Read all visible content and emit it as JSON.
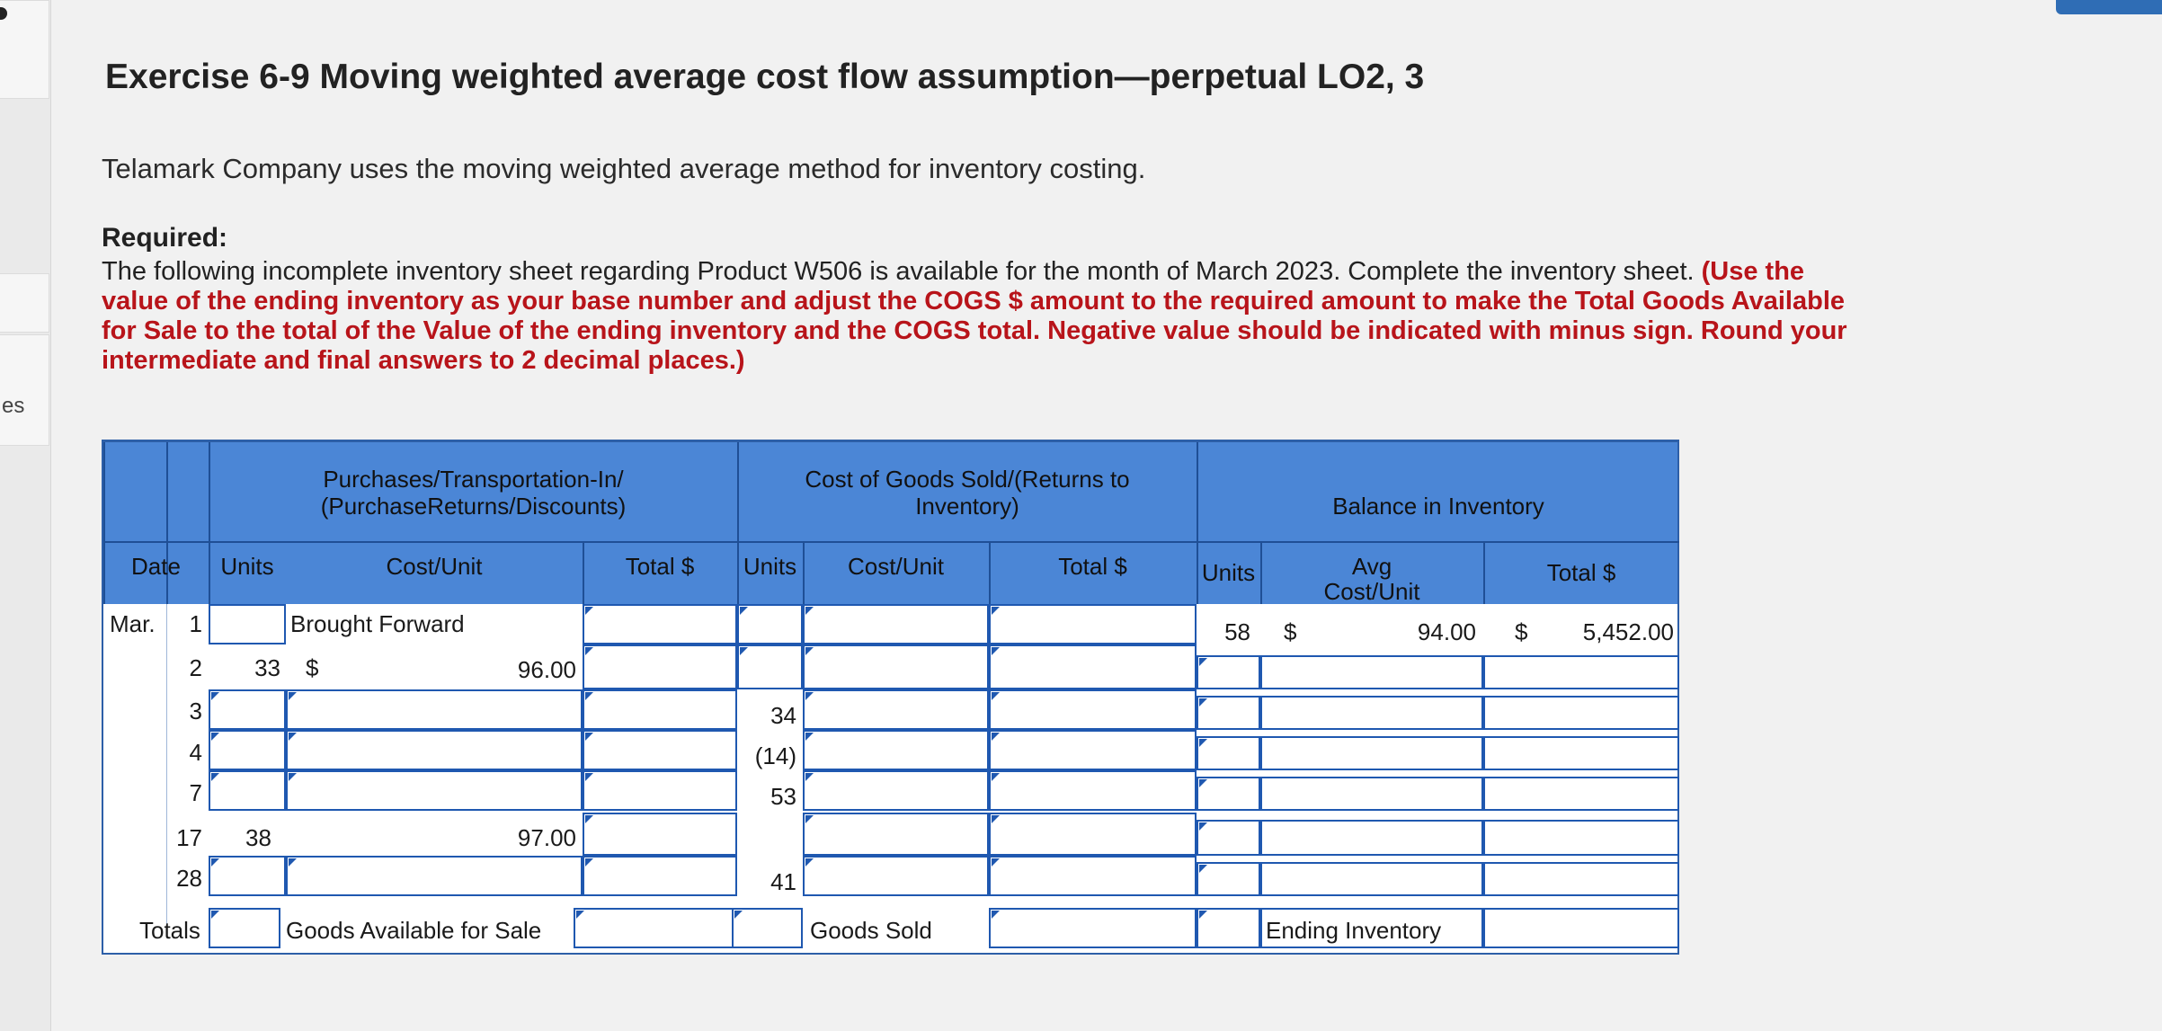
{
  "title": "Exercise 6-9 Moving weighted average cost flow assumption—perpetual LO2, 3",
  "intro": "Telamark Company uses the moving weighted average method for inventory costing.",
  "required_heading": "Required:",
  "paragraph_plain": "The following incomplete inventory sheet regarding Product W506 is available for the month of March 2023. Complete the inventory sheet. ",
  "paragraph_red": "(Use the value of the ending inventory as your base number and adjust the COGS $ amount to the required amount to make the Total Goods Available for Sale to the total of the Value of the ending inventory and the COGS total. Negative value should be indicated with minus sign. Round your intermediate and final answers to 2 decimal places.)",
  "side_fragment": "es",
  "table": {
    "group_purchases": "Purchases/Transportation-In/\n(PurchaseReturns/Discounts)",
    "group_cogs": "Cost of Goods Sold/(Returns to\nInventory)",
    "group_balance": "Balance in Inventory",
    "col_date": "Date",
    "col_units": "Units",
    "col_cost_unit": "Cost/Unit",
    "col_total": "Total $",
    "col_avg_cost": "Avg\nCost/Unit",
    "month": "Mar.",
    "brought_forward": "Brought Forward",
    "goods_available": "Goods Available for Sale",
    "goods_sold": "Goods Sold",
    "ending_inventory": "Ending Inventory",
    "totals": "Totals",
    "dollar": "$",
    "row1": {
      "day": "1",
      "bal_units": "58",
      "bal_avg": "94.00",
      "bal_total": "5,452.00"
    },
    "row2": {
      "day": "2",
      "p_units": "33",
      "p_cost": "96.00"
    },
    "row3": {
      "day": "3",
      "s_units": "34"
    },
    "row4": {
      "day": "4",
      "s_units": "(14)"
    },
    "row5": {
      "day": "7",
      "s_units": "53"
    },
    "row6": {
      "day": "17",
      "p_units": "38",
      "p_cost": "97.00"
    },
    "row7": {
      "day": "28",
      "s_units": "41"
    }
  }
}
